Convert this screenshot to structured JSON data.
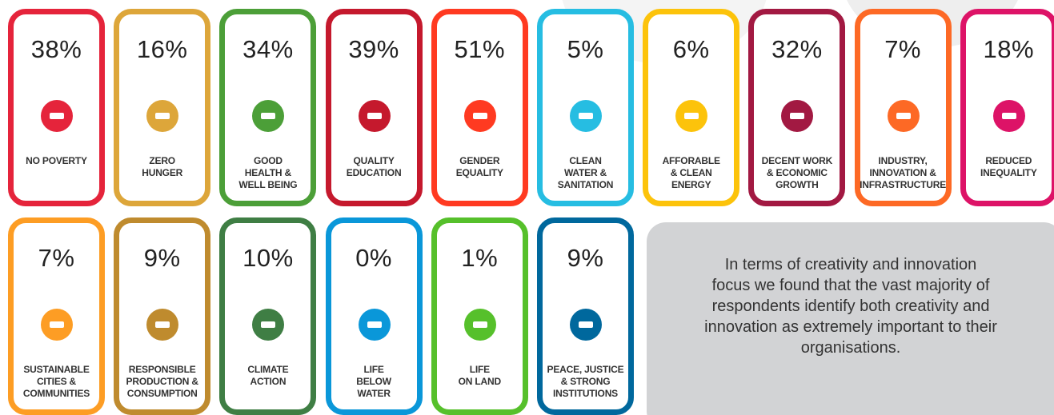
{
  "cards": [
    {
      "percent": "38%",
      "label_lines": [
        "NO POVERTY"
      ],
      "color": "#e5243b"
    },
    {
      "percent": "16%",
      "label_lines": [
        "ZERO",
        "HUNGER"
      ],
      "color": "#dda63a"
    },
    {
      "percent": "34%",
      "label_lines": [
        "GOOD",
        "HEALTH &",
        "WELL BEING"
      ],
      "color": "#4c9f38"
    },
    {
      "percent": "39%",
      "label_lines": [
        "QUALITY",
        "EDUCATION"
      ],
      "color": "#c5192d"
    },
    {
      "percent": "51%",
      "label_lines": [
        "GENDER",
        "EQUALITY"
      ],
      "color": "#ff3a21"
    },
    {
      "percent": "5%",
      "label_lines": [
        "CLEAN",
        "WATER &",
        "SANITATION"
      ],
      "color": "#26bde2"
    },
    {
      "percent": "6%",
      "label_lines": [
        "AFFORABLE",
        "& CLEAN",
        "ENERGY"
      ],
      "color": "#fcc30b"
    },
    {
      "percent": "32%",
      "label_lines": [
        "DECENT WORK",
        "& ECONOMIC",
        "GROWTH"
      ],
      "color": "#a21942"
    },
    {
      "percent": "7%",
      "label_lines": [
        "INDUSTRY,",
        "INNOVATION &",
        "INFRASTRUCTURE"
      ],
      "color": "#fd6925"
    },
    {
      "percent": "18%",
      "label_lines": [
        "REDUCED",
        "INEQUALITY"
      ],
      "color": "#dd1367"
    },
    {
      "percent": "7%",
      "label_lines": [
        "SUSTAINABLE",
        "CITIES &",
        "COMMUNITIES"
      ],
      "color": "#fd9d24"
    },
    {
      "percent": "9%",
      "label_lines": [
        "RESPONSIBLE",
        "PRODUCTION &",
        "CONSUMPTION"
      ],
      "color": "#bf8b2e"
    },
    {
      "percent": "10%",
      "label_lines": [
        "CLIMATE",
        "ACTION"
      ],
      "color": "#3f7e44"
    },
    {
      "percent": "0%",
      "label_lines": [
        "LIFE",
        "BELOW",
        "WATER"
      ],
      "color": "#0a97d9"
    },
    {
      "percent": "1%",
      "label_lines": [
        "LIFE",
        "ON LAND"
      ],
      "color": "#56c02b"
    },
    {
      "percent": "9%",
      "label_lines": [
        "PEACE, JUSTICE",
        "& STRONG",
        "INSTITUTIONS"
      ],
      "color": "#00689d"
    }
  ],
  "note": {
    "lines": [
      "In terms of creativity and innovation",
      "focus we found that the vast majority of",
      "respondents identify both creativity and",
      "innovation as extremely important to their",
      "organisations."
    ]
  }
}
